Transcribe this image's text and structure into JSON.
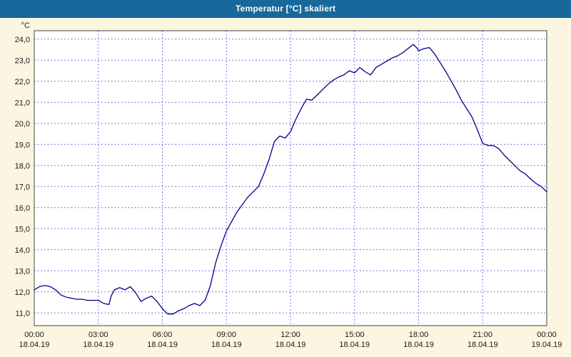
{
  "window": {
    "title": "Temperatur [°C] skaliert",
    "titlebar_color": "#17689b",
    "background_color": "#fbf5e1"
  },
  "chart_data": {
    "type": "line",
    "title": "Temperatur [°C] skaliert",
    "ylabel": "°C",
    "xlabel": "",
    "grid": true,
    "grid_color": "#4a4ad2",
    "axis_color": "#444444",
    "label_color": "#1a1a1a",
    "plot_background": "#ffffff",
    "xlim": [
      0,
      24
    ],
    "ylim": [
      10.4,
      24.4
    ],
    "y_ticks": [
      {
        "v": 24,
        "label": "24,0"
      },
      {
        "v": 23,
        "label": "23,0"
      },
      {
        "v": 22,
        "label": "22,0"
      },
      {
        "v": 21,
        "label": "21,0"
      },
      {
        "v": 20,
        "label": "20,0"
      },
      {
        "v": 19,
        "label": "19,0"
      },
      {
        "v": 18,
        "label": "18,0"
      },
      {
        "v": 17,
        "label": "17,0"
      },
      {
        "v": 16,
        "label": "16,0"
      },
      {
        "v": 15,
        "label": "15,0"
      },
      {
        "v": 14,
        "label": "14,0"
      },
      {
        "v": 13,
        "label": "13,0"
      },
      {
        "v": 12,
        "label": "12,0"
      },
      {
        "v": 11,
        "label": "11,0"
      }
    ],
    "x_ticks": [
      {
        "hour": 0,
        "time": "00:00",
        "date": "18.04.19"
      },
      {
        "hour": 3,
        "time": "03:00",
        "date": "18.04.19"
      },
      {
        "hour": 6,
        "time": "06:00",
        "date": "18.04.19"
      },
      {
        "hour": 9,
        "time": "09:00",
        "date": "18.04.19"
      },
      {
        "hour": 12,
        "time": "12:00",
        "date": "18.04.19"
      },
      {
        "hour": 15,
        "time": "15:00",
        "date": "18.04.19"
      },
      {
        "hour": 18,
        "time": "18:00",
        "date": "18.04.19"
      },
      {
        "hour": 21,
        "time": "21:00",
        "date": "18.04.19"
      },
      {
        "hour": 24,
        "time": "00:00",
        "date": "19.04.19"
      }
    ],
    "series": [
      {
        "name": "Temperatur [°C]",
        "color": "#00008b",
        "points": [
          [
            0.0,
            12.1
          ],
          [
            0.25,
            12.25
          ],
          [
            0.5,
            12.3
          ],
          [
            0.75,
            12.25
          ],
          [
            1.0,
            12.1
          ],
          [
            1.25,
            11.85
          ],
          [
            1.5,
            11.75
          ],
          [
            1.75,
            11.7
          ],
          [
            2.0,
            11.65
          ],
          [
            2.25,
            11.65
          ],
          [
            2.5,
            11.6
          ],
          [
            2.75,
            11.6
          ],
          [
            3.0,
            11.6
          ],
          [
            3.25,
            11.45
          ],
          [
            3.5,
            11.4
          ],
          [
            3.6,
            11.8
          ],
          [
            3.75,
            12.1
          ],
          [
            4.0,
            12.2
          ],
          [
            4.25,
            12.1
          ],
          [
            4.5,
            12.25
          ],
          [
            4.75,
            11.95
          ],
          [
            5.0,
            11.55
          ],
          [
            5.25,
            11.7
          ],
          [
            5.5,
            11.8
          ],
          [
            5.75,
            11.55
          ],
          [
            6.0,
            11.2
          ],
          [
            6.25,
            10.95
          ],
          [
            6.5,
            10.95
          ],
          [
            6.75,
            11.1
          ],
          [
            7.0,
            11.2
          ],
          [
            7.25,
            11.35
          ],
          [
            7.5,
            11.45
          ],
          [
            7.75,
            11.35
          ],
          [
            8.0,
            11.6
          ],
          [
            8.25,
            12.3
          ],
          [
            8.5,
            13.4
          ],
          [
            8.75,
            14.2
          ],
          [
            9.0,
            14.9
          ],
          [
            9.25,
            15.35
          ],
          [
            9.5,
            15.8
          ],
          [
            9.75,
            16.15
          ],
          [
            10.0,
            16.5
          ],
          [
            10.25,
            16.75
          ],
          [
            10.5,
            17.0
          ],
          [
            10.75,
            17.6
          ],
          [
            11.0,
            18.3
          ],
          [
            11.25,
            19.15
          ],
          [
            11.5,
            19.4
          ],
          [
            11.75,
            19.3
          ],
          [
            12.0,
            19.6
          ],
          [
            12.25,
            20.2
          ],
          [
            12.5,
            20.7
          ],
          [
            12.75,
            21.15
          ],
          [
            13.0,
            21.1
          ],
          [
            13.25,
            21.35
          ],
          [
            13.5,
            21.6
          ],
          [
            13.75,
            21.85
          ],
          [
            14.0,
            22.05
          ],
          [
            14.25,
            22.2
          ],
          [
            14.5,
            22.3
          ],
          [
            14.75,
            22.5
          ],
          [
            15.0,
            22.4
          ],
          [
            15.25,
            22.65
          ],
          [
            15.5,
            22.45
          ],
          [
            15.75,
            22.3
          ],
          [
            16.0,
            22.65
          ],
          [
            16.25,
            22.8
          ],
          [
            16.5,
            22.95
          ],
          [
            16.75,
            23.1
          ],
          [
            17.0,
            23.2
          ],
          [
            17.25,
            23.35
          ],
          [
            17.5,
            23.55
          ],
          [
            17.75,
            23.75
          ],
          [
            17.9,
            23.6
          ],
          [
            18.0,
            23.45
          ],
          [
            18.25,
            23.55
          ],
          [
            18.5,
            23.6
          ],
          [
            18.75,
            23.3
          ],
          [
            19.0,
            22.9
          ],
          [
            19.25,
            22.5
          ],
          [
            19.5,
            22.05
          ],
          [
            19.75,
            21.6
          ],
          [
            20.0,
            21.1
          ],
          [
            20.25,
            20.7
          ],
          [
            20.5,
            20.3
          ],
          [
            20.75,
            19.7
          ],
          [
            21.0,
            19.05
          ],
          [
            21.25,
            18.95
          ],
          [
            21.5,
            18.95
          ],
          [
            21.75,
            18.8
          ],
          [
            22.0,
            18.5
          ],
          [
            22.25,
            18.25
          ],
          [
            22.5,
            18.0
          ],
          [
            22.75,
            17.75
          ],
          [
            23.0,
            17.6
          ],
          [
            23.25,
            17.35
          ],
          [
            23.5,
            17.15
          ],
          [
            23.75,
            17.0
          ],
          [
            24.0,
            16.75
          ]
        ]
      }
    ]
  }
}
